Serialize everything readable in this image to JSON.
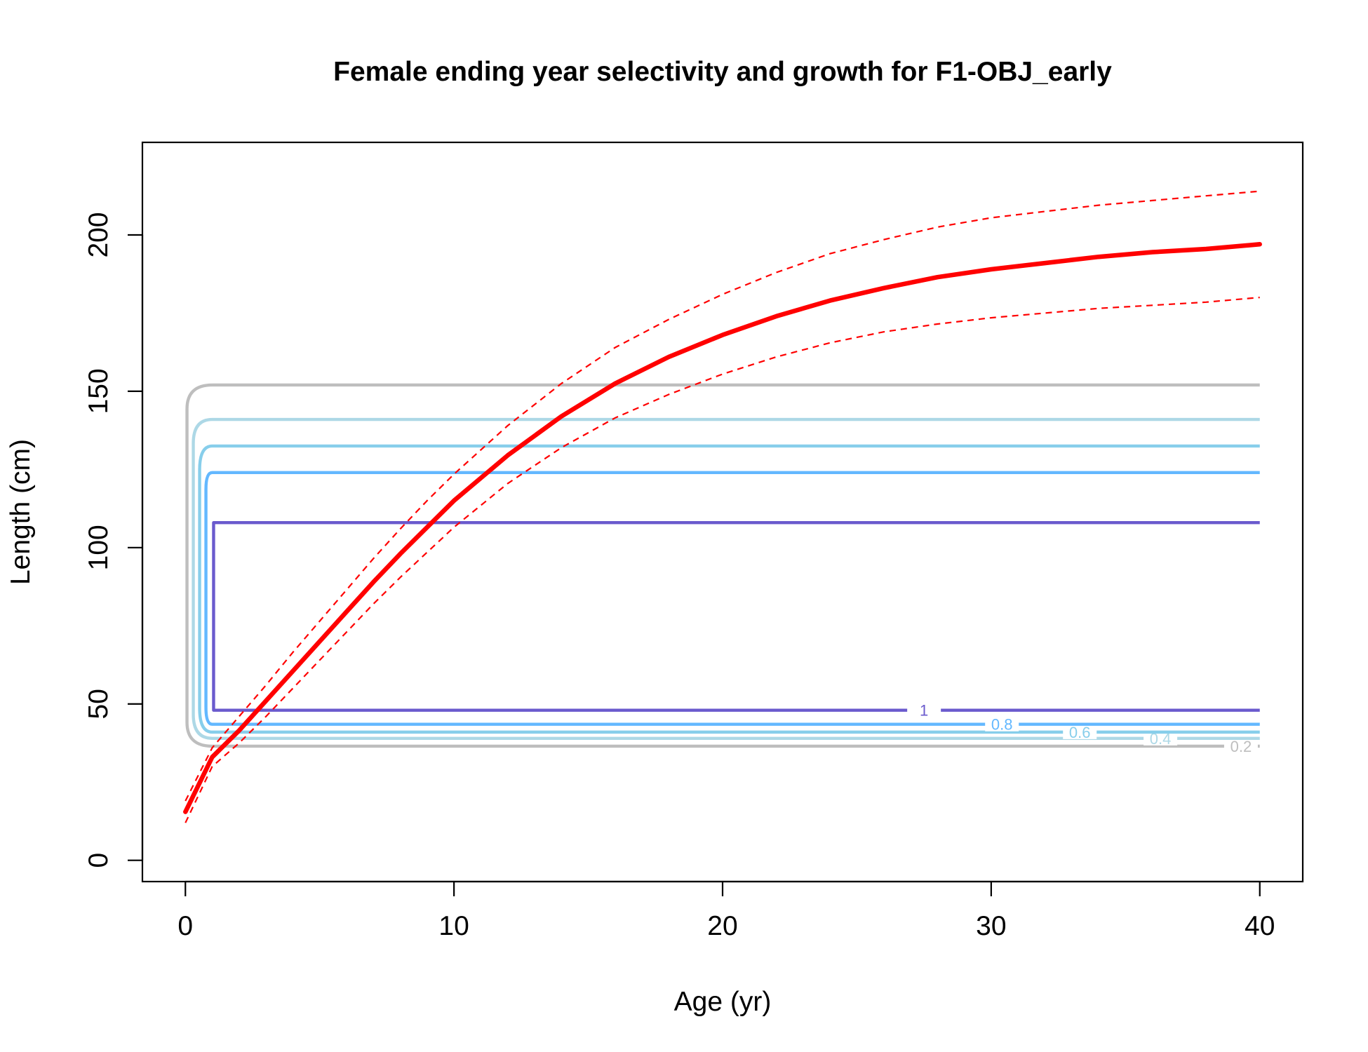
{
  "chart_data": {
    "type": "line",
    "title": "Female ending year selectivity and growth for F1-OBJ_early",
    "xlabel": "Age (yr)",
    "ylabel": "Length (cm)",
    "xlim": [
      -1.6,
      41.6
    ],
    "ylim": [
      -6.8,
      229.6
    ],
    "x_ticks": [
      0,
      10,
      20,
      30,
      40
    ],
    "y_ticks": [
      0,
      50,
      100,
      150,
      200
    ],
    "x_tick_labels": [
      "0",
      "10",
      "20",
      "30",
      "40"
    ],
    "y_tick_labels": [
      "0",
      "50",
      "100",
      "150",
      "200"
    ],
    "grid": false,
    "growth": {
      "color": "#ff0000",
      "x": [
        0,
        1,
        2,
        3,
        4,
        5,
        6,
        7,
        8,
        9,
        10,
        12,
        14,
        16,
        18,
        20,
        22,
        24,
        26,
        28,
        30,
        32,
        34,
        36,
        38,
        40
      ],
      "mean": [
        15.5,
        33,
        41.5,
        51,
        60.5,
        70,
        79.5,
        89,
        98,
        106.5,
        115,
        129.5,
        142,
        152.5,
        161,
        168,
        174,
        179,
        183,
        186.5,
        189,
        191,
        193,
        194.5,
        195.5,
        197
      ],
      "upper": [
        19,
        36,
        46,
        56,
        66.5,
        76.5,
        86.5,
        96.5,
        106,
        115,
        123.5,
        139,
        152.5,
        164,
        173,
        181,
        188,
        194,
        198.5,
        202.5,
        205.5,
        207.5,
        209.5,
        211,
        212.5,
        214
      ],
      "lower": [
        12,
        30,
        37.5,
        46,
        55,
        64,
        73,
        82,
        90.5,
        98.5,
        106.5,
        120.5,
        132,
        141.5,
        149,
        155.5,
        161,
        165.5,
        169,
        171.5,
        173.5,
        175,
        176.5,
        177.5,
        178.5,
        180
      ]
    },
    "selectivity_contours": [
      {
        "level": "0.2",
        "color": "#bebebe",
        "x_start": 1.0,
        "x_end": 40,
        "len_min": 36.5,
        "len_max": 152,
        "label_age": 39.3
      },
      {
        "level": "0.4",
        "color": "#add8e6",
        "x_start": 1.0,
        "x_end": 40,
        "len_min": 39,
        "len_max": 141,
        "label_age": 36.3
      },
      {
        "level": "0.6",
        "color": "#87ceeb",
        "x_start": 1.0,
        "x_end": 40,
        "len_min": 41,
        "len_max": 132.5,
        "label_age": 33.3
      },
      {
        "level": "0.8",
        "color": "#63b8ff",
        "x_start": 1.0,
        "x_end": 40,
        "len_min": 43.5,
        "len_max": 124,
        "label_age": 30.4
      },
      {
        "level": "1",
        "color": "#6a5acd",
        "x_start": 1.05,
        "x_end": 40,
        "len_min": 48,
        "len_max": 108,
        "label_age": 27.5
      }
    ]
  }
}
